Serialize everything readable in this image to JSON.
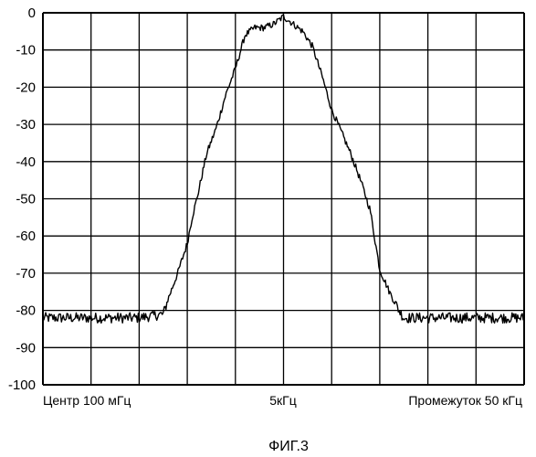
{
  "chart_data": {
    "type": "line",
    "title": "",
    "xlabel": "",
    "ylabel": "",
    "ylim": [
      -100,
      0
    ],
    "yticks": [
      0,
      -10,
      -20,
      -30,
      -40,
      -50,
      -60,
      -70,
      -80,
      -90,
      -100
    ],
    "yticks_text": [
      "0",
      "-10",
      "-20",
      "-30",
      "-40",
      "-50",
      "-60",
      "-70",
      "-80",
      "-90",
      "-100"
    ],
    "x_divisions": 10,
    "grid": true,
    "legend": "none",
    "bottom_labels": {
      "left": "Центр 100 мГц",
      "center": "5кГц",
      "right": "Промежуток 50 кГц"
    },
    "series": [
      {
        "x": [
          0,
          0.5,
          1.0,
          1.5,
          2.0,
          2.5,
          2.6,
          2.8,
          3.0,
          3.1,
          3.2,
          3.3,
          3.4,
          3.6,
          3.8,
          4.0,
          4.2,
          4.4,
          4.6,
          4.8,
          5.0,
          5.2,
          5.4,
          5.6,
          5.8,
          6.0,
          6.2,
          6.4,
          6.6,
          6.8,
          6.9,
          7.0,
          7.2,
          7.4,
          7.5,
          8.0,
          8.5,
          9.0,
          9.5,
          10.0
        ],
        "y": [
          -82,
          -82,
          -82,
          -82,
          -82,
          -81,
          -77,
          -70,
          -62,
          -55,
          -50,
          -44,
          -38,
          -31,
          -22,
          -15,
          -6,
          -4,
          -4,
          -3,
          -1,
          -3,
          -5,
          -9,
          -17,
          -26,
          -32,
          -38,
          -45,
          -53,
          -61,
          -69,
          -75,
          -80,
          -82,
          -82,
          -82,
          -82,
          -82,
          -82
        ]
      }
    ]
  },
  "caption": "ФИГ.3",
  "colors": {
    "line": "#000000",
    "grid": "#000000",
    "background": "#ffffff"
  }
}
